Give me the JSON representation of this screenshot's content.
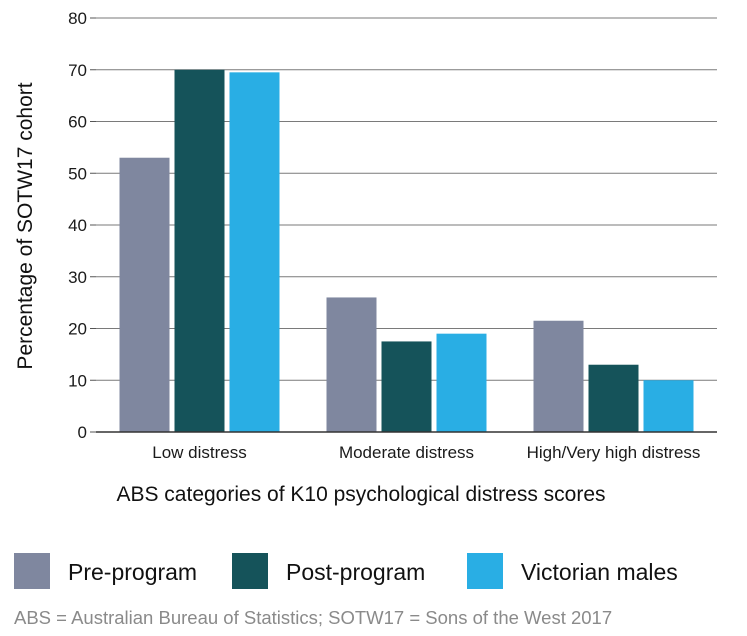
{
  "chart_data": {
    "type": "bar",
    "title": "",
    "xlabel": "ABS categories of K10 psychological distress scores",
    "ylabel": "Percentage of SOTW17 cohort",
    "ylim": [
      0,
      80
    ],
    "yticks": [
      0,
      10,
      20,
      30,
      40,
      50,
      60,
      70,
      80
    ],
    "grid": true,
    "legend_position": "bottom",
    "categories": [
      "Low distress",
      "Moderate distress",
      "High/Very high distress"
    ],
    "series": [
      {
        "name": "Pre-program",
        "color": "#7f879f",
        "values": [
          53,
          26,
          21.5
        ]
      },
      {
        "name": "Post-program",
        "color": "#15535a",
        "values": [
          70,
          17.5,
          13
        ]
      },
      {
        "name": "Victorian males",
        "color": "#29aee4",
        "values": [
          69.5,
          19,
          10
        ]
      }
    ],
    "footnote": "ABS = Australian Bureau of Statistics; SOTW17 = Sons of the West 2017"
  }
}
